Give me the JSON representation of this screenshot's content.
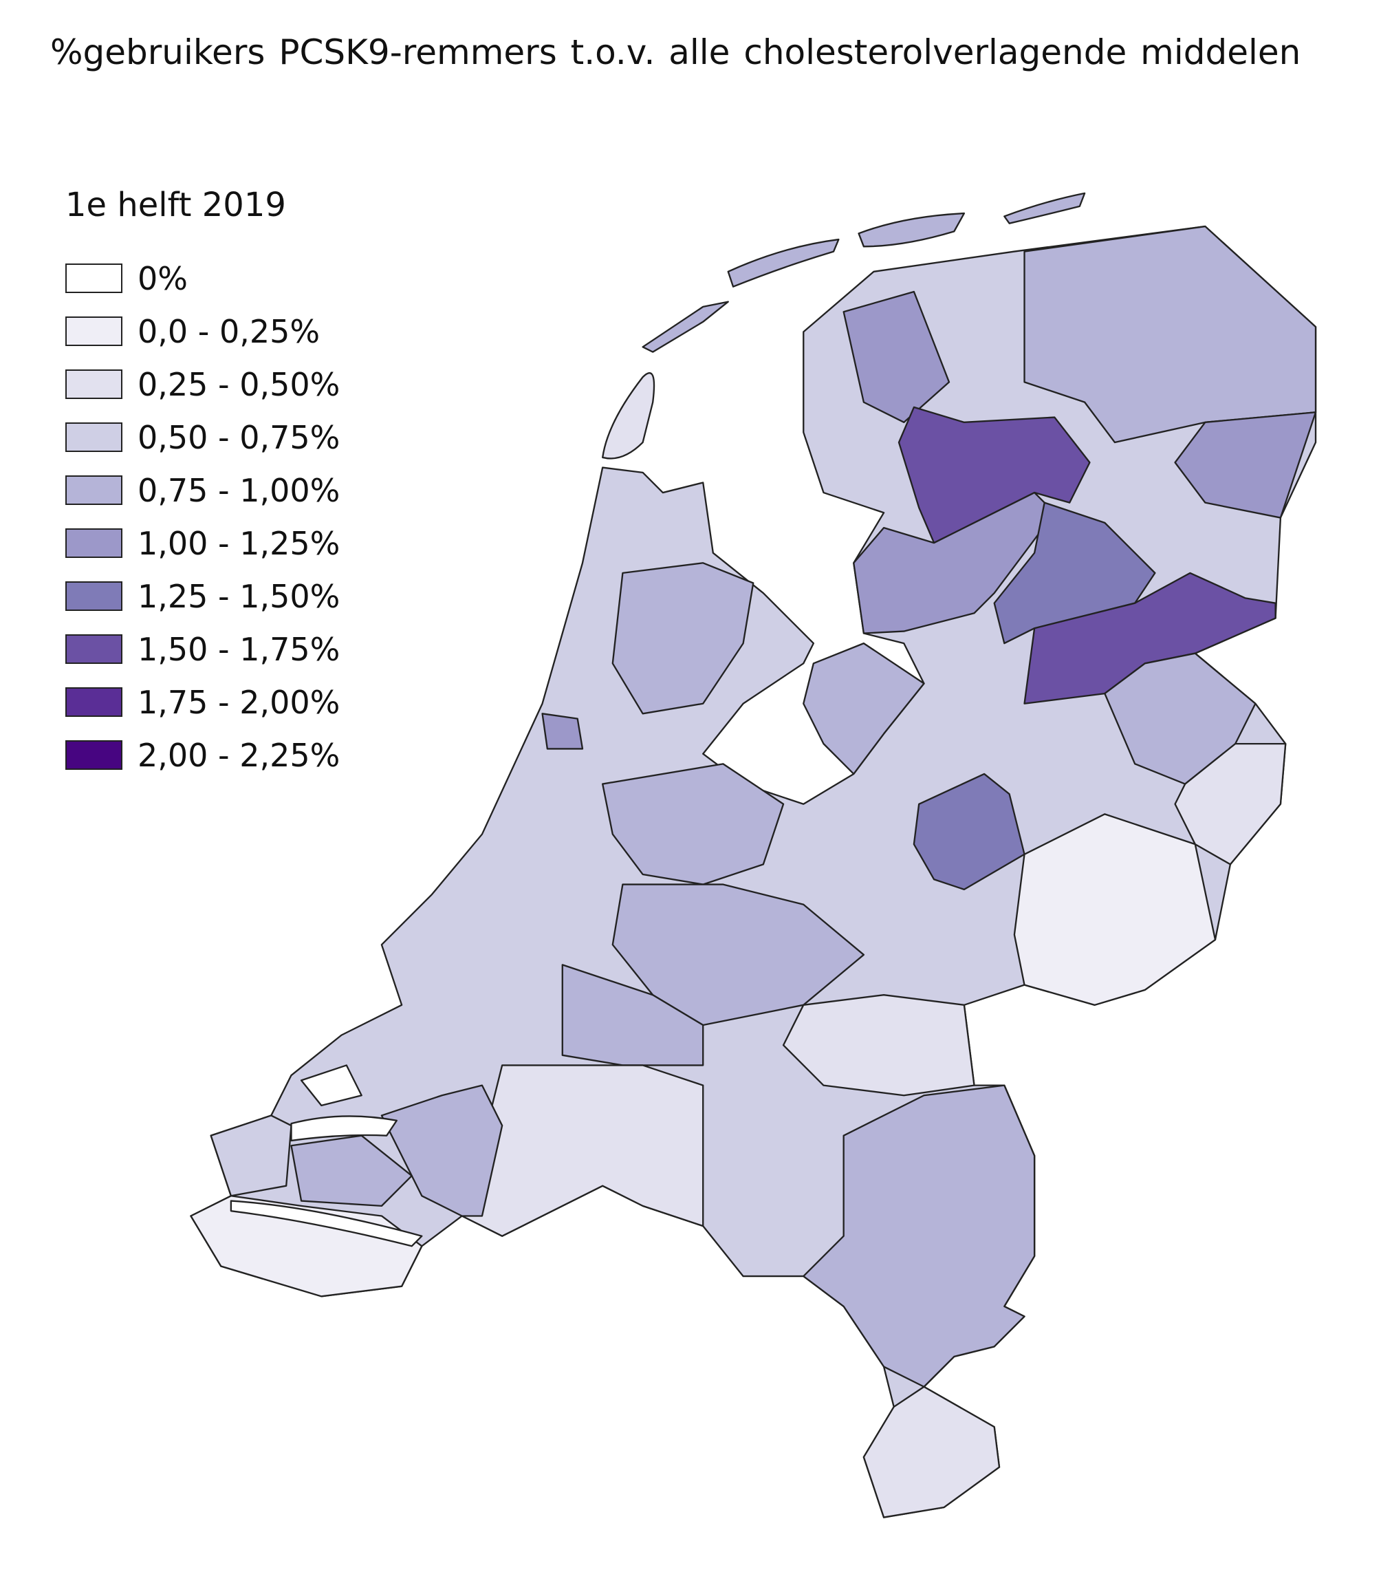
{
  "header": {
    "title": "%gebruikers PCSK9-remmers t.o.v. alle cholesterolverlagende middelen"
  },
  "legend": {
    "title": "1e helft 2019",
    "items": [
      {
        "label": "0%",
        "color": "#ffffff"
      },
      {
        "label": "0,0 - 0,25%",
        "color": "#efeef6"
      },
      {
        "label": "0,25 - 0,50%",
        "color": "#e2e1ef"
      },
      {
        "label": "0,50 - 0,75%",
        "color": "#cfcfe5"
      },
      {
        "label": "0,75 - 1,00%",
        "color": "#b5b4d8"
      },
      {
        "label": "1,00 - 1,25%",
        "color": "#9c98c9"
      },
      {
        "label": "1,25 - 1,50%",
        "color": "#7f7bb7"
      },
      {
        "label": "1,50 - 1,75%",
        "color": "#6b51a4"
      },
      {
        "label": "1,75 - 2,00%",
        "color": "#5a2e96"
      },
      {
        "label": "2,00 - 2,25%",
        "color": "#470581"
      }
    ]
  }
}
